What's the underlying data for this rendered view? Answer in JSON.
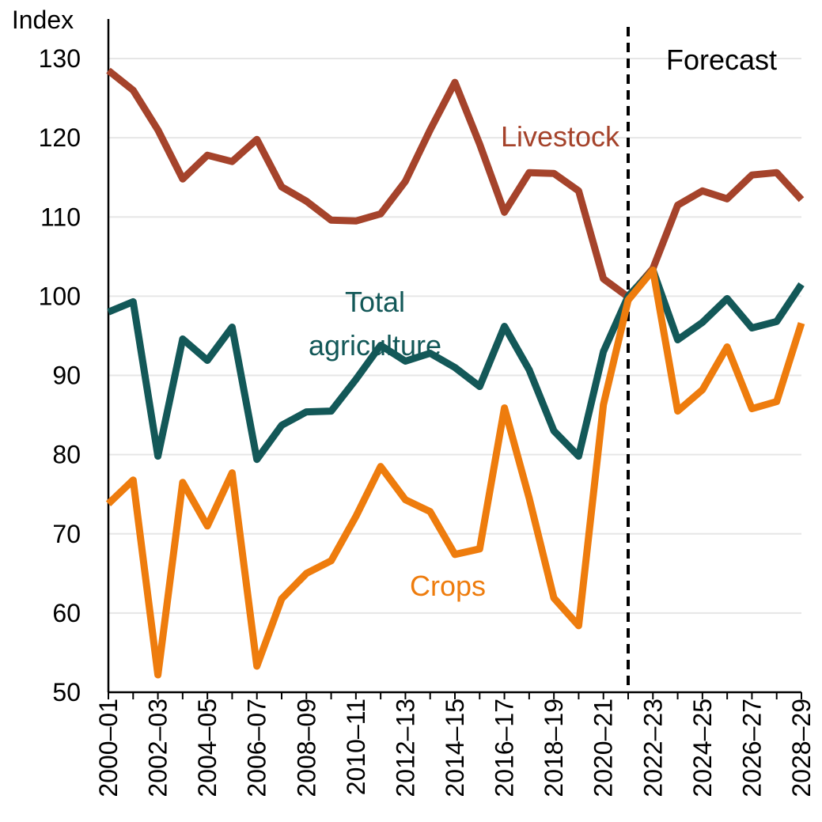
{
  "chart_data": {
    "type": "line",
    "ylabel": "Index",
    "ylim": [
      50,
      135
    ],
    "yticks": [
      50,
      60,
      70,
      80,
      90,
      100,
      110,
      120,
      130
    ],
    "grid": true,
    "x": [
      "2000–01",
      "2001–02",
      "2002–03",
      "2003–04",
      "2004–05",
      "2005–06",
      "2006–07",
      "2007–08",
      "2008–09",
      "2009–10",
      "2010–11",
      "2011–12",
      "2012–13",
      "2013–14",
      "2014–15",
      "2015–16",
      "2016–17",
      "2017–18",
      "2018–19",
      "2019–20",
      "2020–21",
      "2021–22",
      "2022–23",
      "2023–24",
      "2024–25",
      "2025–26",
      "2026–27",
      "2027–28",
      "2028–29"
    ],
    "xtick_labels": [
      "2000–01",
      "",
      "2002–03",
      "",
      "2004–05",
      "",
      "2006–07",
      "",
      "2008–09",
      "",
      "2010–11",
      "",
      "2012–13",
      "",
      "2014–15",
      "",
      "2016–17",
      "",
      "2018–19",
      "",
      "2020–21",
      "",
      "2022–23",
      "",
      "2024–25",
      "",
      "2026–27",
      "",
      "2028–29"
    ],
    "forecast_start": "2021–22",
    "forecast_label": "Forecast",
    "series": [
      {
        "name": "Livestock",
        "color": "#a5432b",
        "values": [
          128.5,
          126,
          121,
          114.8,
          117.8,
          117,
          119.8,
          113.8,
          112,
          109.6,
          109.5,
          110.4,
          114.5,
          121,
          127,
          119.2,
          110.6,
          115.6,
          115.5,
          113.3,
          102.2,
          99.9,
          103.5,
          111.5,
          113.3,
          112.3,
          115.3,
          115.6,
          112.2
        ]
      },
      {
        "name": "Total agriculture",
        "color": "#135858",
        "values": [
          98,
          99.3,
          79.8,
          94.6,
          91.9,
          96.1,
          79.4,
          83.7,
          85.4,
          85.5,
          89.5,
          93.8,
          91.8,
          92.8,
          91,
          88.6,
          96.2,
          90.7,
          83,
          79.8,
          93,
          100,
          103.3,
          94.5,
          96.7,
          99.7,
          96,
          96.8,
          101.5
        ]
      },
      {
        "name": "Crops",
        "color": "#ee7c0d",
        "values": [
          73.8,
          76.8,
          52.2,
          76.5,
          71,
          77.7,
          53.3,
          61.8,
          65,
          66.6,
          72.2,
          78.5,
          74.3,
          72.8,
          67.4,
          68.1,
          85.9,
          74.5,
          61.9,
          58.4,
          86.3,
          99.5,
          103.3,
          85.5,
          88.2,
          93.6,
          85.8,
          86.7,
          96.6
        ]
      }
    ],
    "labels": {
      "livestock": "Livestock",
      "total_line1": "Total",
      "total_line2": "agriculture",
      "crops": "Crops"
    }
  }
}
